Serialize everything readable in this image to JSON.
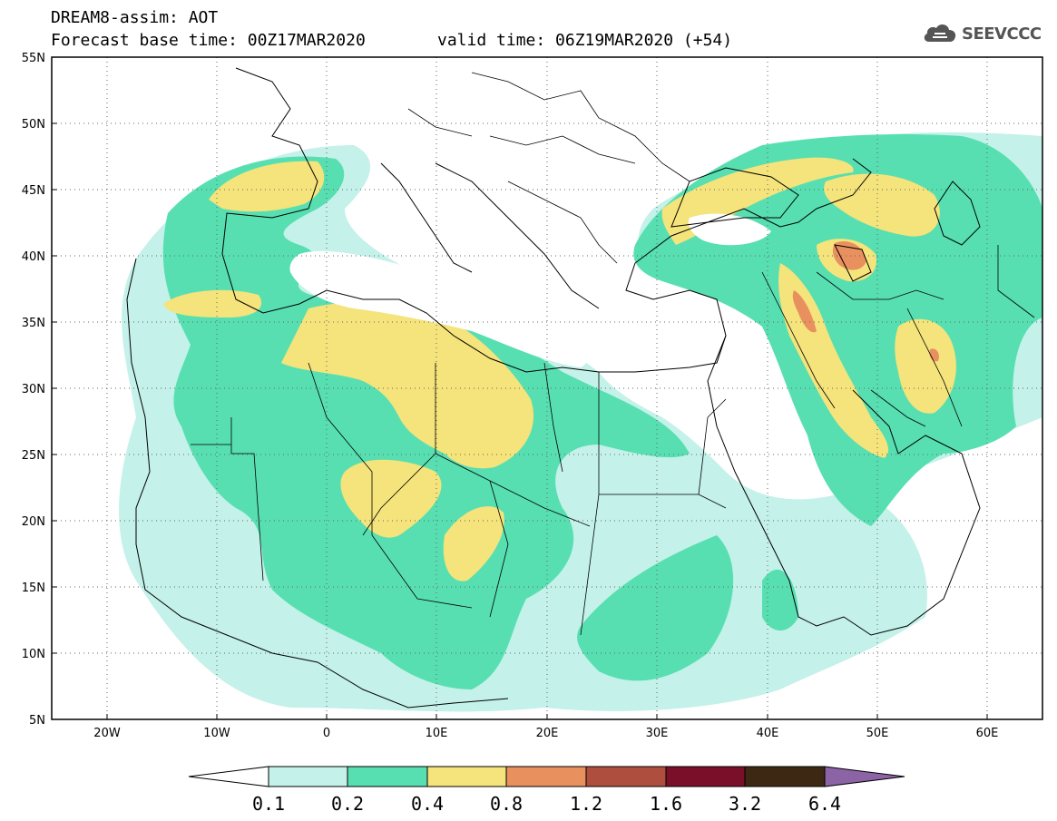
{
  "header": {
    "title": "DREAM8-assim: AOT",
    "base_time": "Forecast base time: 00Z17MAR2020",
    "valid_time": "valid time: 06Z19MAR2020 (+54)"
  },
  "logo": {
    "text": "SEEVCCC",
    "icon": "cloud-icon"
  },
  "map": {
    "lon_range": [
      -25,
      65
    ],
    "lat_range": [
      5,
      55
    ],
    "lat_ticks": [
      "55N",
      "50N",
      "45N",
      "40N",
      "35N",
      "30N",
      "25N",
      "20N",
      "15N",
      "10N",
      "5N"
    ],
    "lon_ticks": [
      "20W",
      "10W",
      "0",
      "10E",
      "20E",
      "30E",
      "40E",
      "50E",
      "60E"
    ],
    "grid": "dotted"
  },
  "colorbar": {
    "labels": [
      "0.1",
      "0.2",
      "0.4",
      "0.8",
      "1.2",
      "1.6",
      "3.2",
      "6.4"
    ],
    "colors": [
      "#ffffff",
      "#c4f1e9",
      "#57dfb1",
      "#f5e37b",
      "#e9905f",
      "#ad4e3e",
      "#7a0f29",
      "#3d2813",
      "#8c63a5"
    ]
  },
  "chart_data": {
    "type": "heatmap",
    "title": "DREAM8-assim: AOT",
    "variable": "AOT",
    "levels": [
      0.1,
      0.2,
      0.4,
      0.8,
      1.2,
      1.6,
      3.2,
      6.4
    ],
    "x_axis": {
      "range": [
        -25,
        65
      ],
      "ticks": [
        "20W",
        "10W",
        "0",
        "10E",
        "20E",
        "30E",
        "40E",
        "50E",
        "60E"
      ]
    },
    "y_axis": {
      "range": [
        5,
        55
      ],
      "ticks": [
        "5N",
        "10N",
        "15N",
        "20N",
        "25N",
        "30N",
        "35N",
        "40N",
        "45N",
        "50N",
        "55N"
      ]
    }
  }
}
